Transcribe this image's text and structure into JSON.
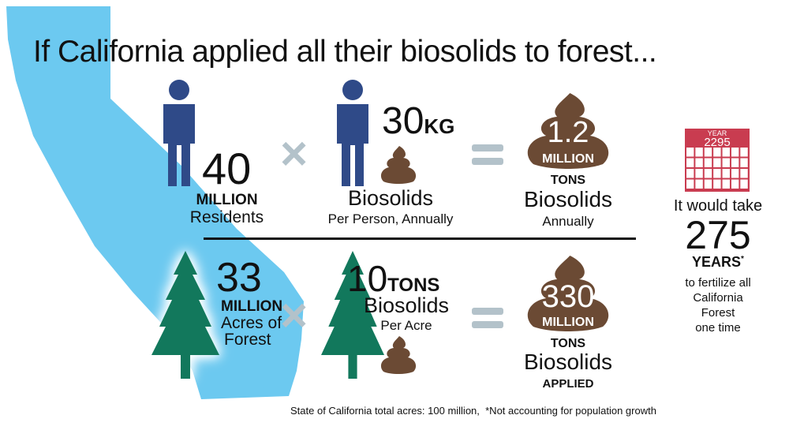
{
  "title": "If California applied all their biosolids to forest...",
  "colors": {
    "state": "#6cc9f0",
    "person": "#2f4a88",
    "tree": "#12785c",
    "poop": "#6b4a34",
    "calendar": "#c93c50",
    "operator": "#b3c2ca"
  },
  "row1": {
    "residents": {
      "number": "40",
      "unit": "MILLION",
      "label": "Residents",
      "icon": "person-icon"
    },
    "operator1": "×",
    "per_person": {
      "number": "30",
      "unit": "KG",
      "label": "Biosolids",
      "sublabel": "Per Person, Annually",
      "icon": "person-icon"
    },
    "operator2": "=",
    "result": {
      "number": "1.2",
      "unit": "MILLION",
      "tons": "TONS",
      "label": "Biosolids",
      "sublabel": "Annually",
      "icon": "poop-icon"
    }
  },
  "row2": {
    "forest": {
      "number": "33",
      "unit": "MILLION",
      "label1": "Acres of",
      "label2": "Forest",
      "icon": "tree-icon"
    },
    "operator1": "×",
    "per_acre": {
      "number": "10",
      "unit": "TONS",
      "label": "Biosolids",
      "sublabel": "Per Acre",
      "icon": "tree-icon"
    },
    "operator2": "=",
    "result": {
      "number": "330",
      "unit": "MILLION",
      "tons": "TONS",
      "label": "Biosolids",
      "sublabel": "APPLIED",
      "icon": "poop-icon"
    }
  },
  "calendar": {
    "label": "YEAR",
    "year": "2295",
    "icon": "calendar-icon"
  },
  "conclusion": {
    "lead": "It would take",
    "number": "275",
    "unit": "YEARS",
    "asterisk": "*",
    "line1": "to fertilize all",
    "line2": "California",
    "line3": "Forest",
    "line4": "one time"
  },
  "footnote": "State of California total acres: 100 million,  *Not accounting for population growth"
}
